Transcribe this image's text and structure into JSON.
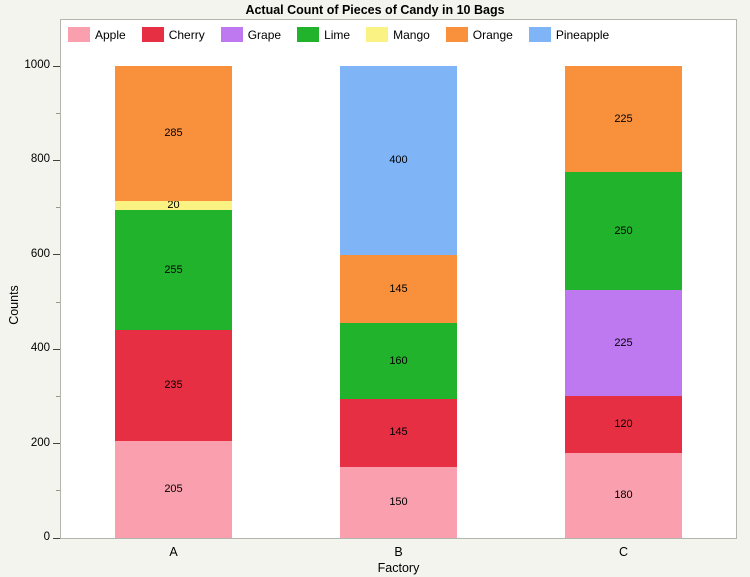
{
  "chart_data": {
    "type": "bar",
    "stacked": true,
    "title": "Actual Count of Pieces of Candy in 10 Bags",
    "xlabel": "Factory",
    "ylabel": "Counts",
    "categories": [
      "A",
      "B",
      "C"
    ],
    "series": [
      {
        "name": "Apple",
        "color": "#F99FAD",
        "values": [
          205,
          150,
          180
        ]
      },
      {
        "name": "Cherry",
        "color": "#E72F44",
        "values": [
          235,
          145,
          120
        ]
      },
      {
        "name": "Grape",
        "color": "#BE79F1",
        "values": [
          0,
          0,
          225
        ]
      },
      {
        "name": "Lime",
        "color": "#21B32B",
        "values": [
          255,
          160,
          250
        ]
      },
      {
        "name": "Mango",
        "color": "#FBF284",
        "values": [
          20,
          0,
          0
        ]
      },
      {
        "name": "Orange",
        "color": "#F9913C",
        "values": [
          285,
          145,
          225
        ]
      },
      {
        "name": "Pineapple",
        "color": "#7FB5F7",
        "values": [
          0,
          400,
          0
        ]
      }
    ],
    "ylim": [
      0,
      1000
    ],
    "yticks": [
      0,
      200,
      400,
      600,
      800,
      1000
    ],
    "minor_tick_step": 100,
    "grid": false,
    "legend_position": "top-left-inside",
    "segment_labels": true,
    "background": "#F4F4EE",
    "plot_background": "#FFFFFF"
  }
}
